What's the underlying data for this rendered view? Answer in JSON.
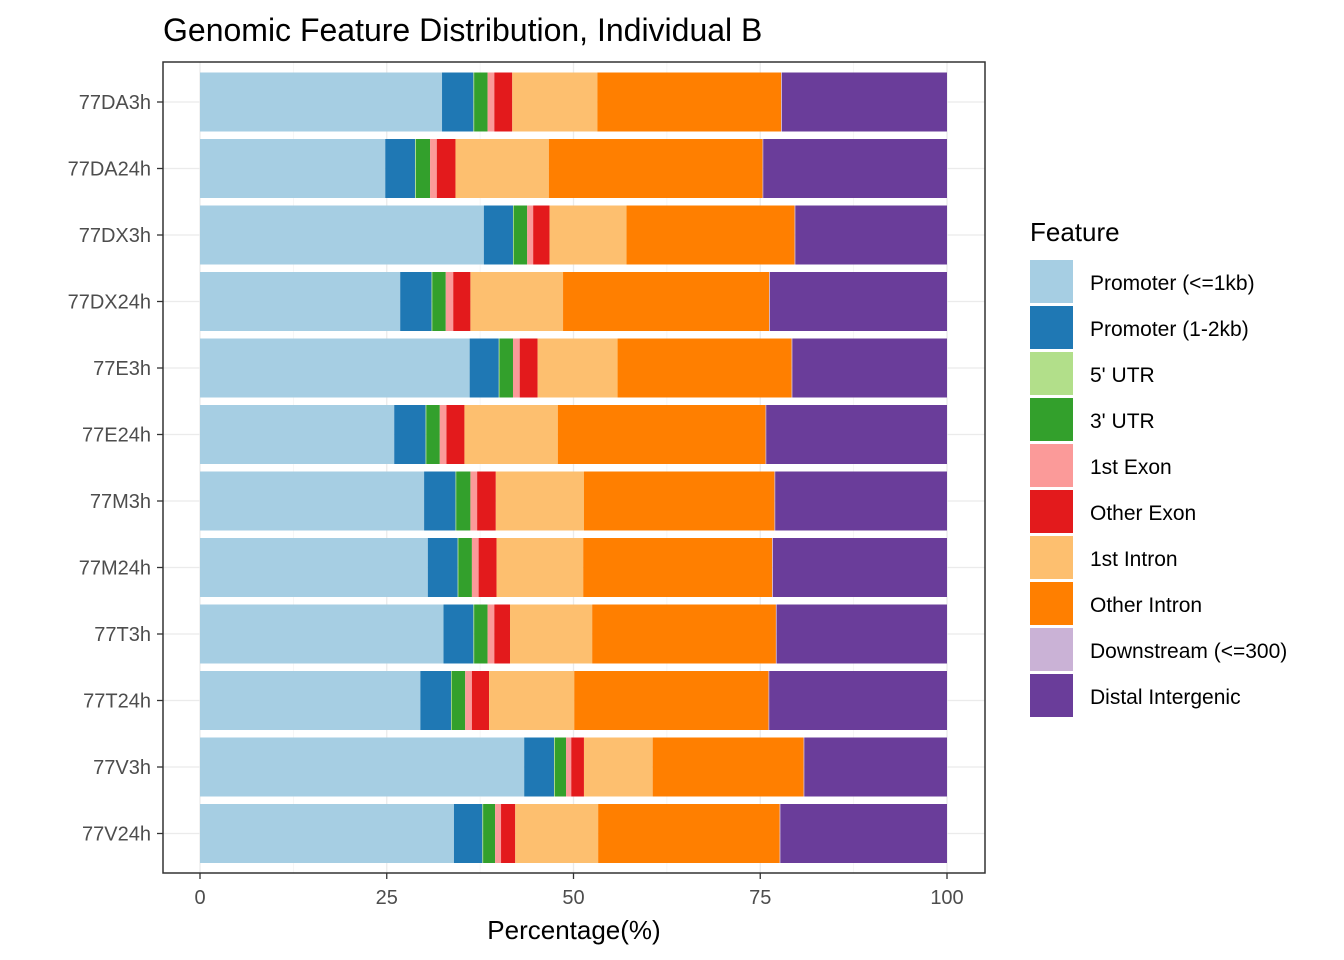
{
  "chart_data": {
    "type": "bar",
    "orientation": "horizontal",
    "stacked": true,
    "title": "Genomic Feature Distribution, Individual B",
    "xlabel": "Percentage(%)",
    "ylabel": "",
    "xlim": [
      0,
      100
    ],
    "xticks": [
      "0",
      "25",
      "50",
      "75",
      "100"
    ],
    "grid": true,
    "legend_title": "Feature",
    "legend_position": "right",
    "categories": [
      "77DA3h",
      "77DA24h",
      "77DX3h",
      "77DX24h",
      "77E3h",
      "77E24h",
      "77M3h",
      "77M24h",
      "77T3h",
      "77T24h",
      "77V3h",
      "77V24h"
    ],
    "series": [
      {
        "name": "Promoter (<=1kb)",
        "color": "#A6CEE3",
        "values": [
          32.4,
          24.8,
          38.0,
          26.8,
          36.1,
          26.0,
          30.0,
          30.5,
          32.6,
          29.5,
          43.4,
          34.0
        ]
      },
      {
        "name": "Promoter (1-2kb)",
        "color": "#1F78B4",
        "values": [
          4.2,
          4.0,
          3.9,
          4.2,
          3.9,
          4.2,
          4.2,
          4.0,
          4.0,
          4.1,
          4.0,
          3.8
        ]
      },
      {
        "name": "5' UTR",
        "color": "#B2DF8A",
        "values": [
          0.1,
          0.1,
          0.1,
          0.1,
          0.1,
          0.1,
          0.1,
          0.1,
          0.1,
          0.1,
          0.1,
          0.1
        ]
      },
      {
        "name": "3' UTR",
        "color": "#33A02C",
        "values": [
          1.8,
          1.9,
          1.8,
          1.8,
          1.8,
          1.8,
          1.9,
          1.8,
          1.8,
          1.8,
          1.5,
          1.6
        ]
      },
      {
        "name": "1st Exon",
        "color": "#FB9A99",
        "values": [
          0.9,
          0.9,
          0.8,
          1.0,
          0.9,
          0.9,
          0.9,
          0.9,
          0.9,
          0.9,
          0.7,
          0.8
        ]
      },
      {
        "name": "Other Exon",
        "color": "#E31A1C",
        "values": [
          2.4,
          2.5,
          2.2,
          2.3,
          2.4,
          2.4,
          2.5,
          2.4,
          2.1,
          2.3,
          1.7,
          1.9
        ]
      },
      {
        "name": "1st Intron",
        "color": "#FDBF6F",
        "values": [
          11.4,
          12.5,
          10.3,
          12.4,
          10.7,
          12.5,
          11.8,
          11.6,
          11.0,
          11.4,
          9.2,
          11.1
        ]
      },
      {
        "name": "Other Intron",
        "color": "#FF7F00",
        "values": [
          24.6,
          28.6,
          22.5,
          27.6,
          23.3,
          27.8,
          25.5,
          25.3,
          24.6,
          26.0,
          20.2,
          24.3
        ]
      },
      {
        "name": "Downstream (<=300)",
        "color": "#CAB2D6",
        "values": [
          0.1,
          0.1,
          0.1,
          0.1,
          0.1,
          0.1,
          0.1,
          0.1,
          0.1,
          0.1,
          0.1,
          0.1
        ]
      },
      {
        "name": "Distal Intergenic",
        "color": "#6A3D9A",
        "values": [
          22.1,
          24.6,
          20.3,
          23.7,
          20.7,
          24.2,
          23.0,
          23.3,
          22.8,
          23.8,
          19.1,
          22.3
        ]
      }
    ]
  }
}
